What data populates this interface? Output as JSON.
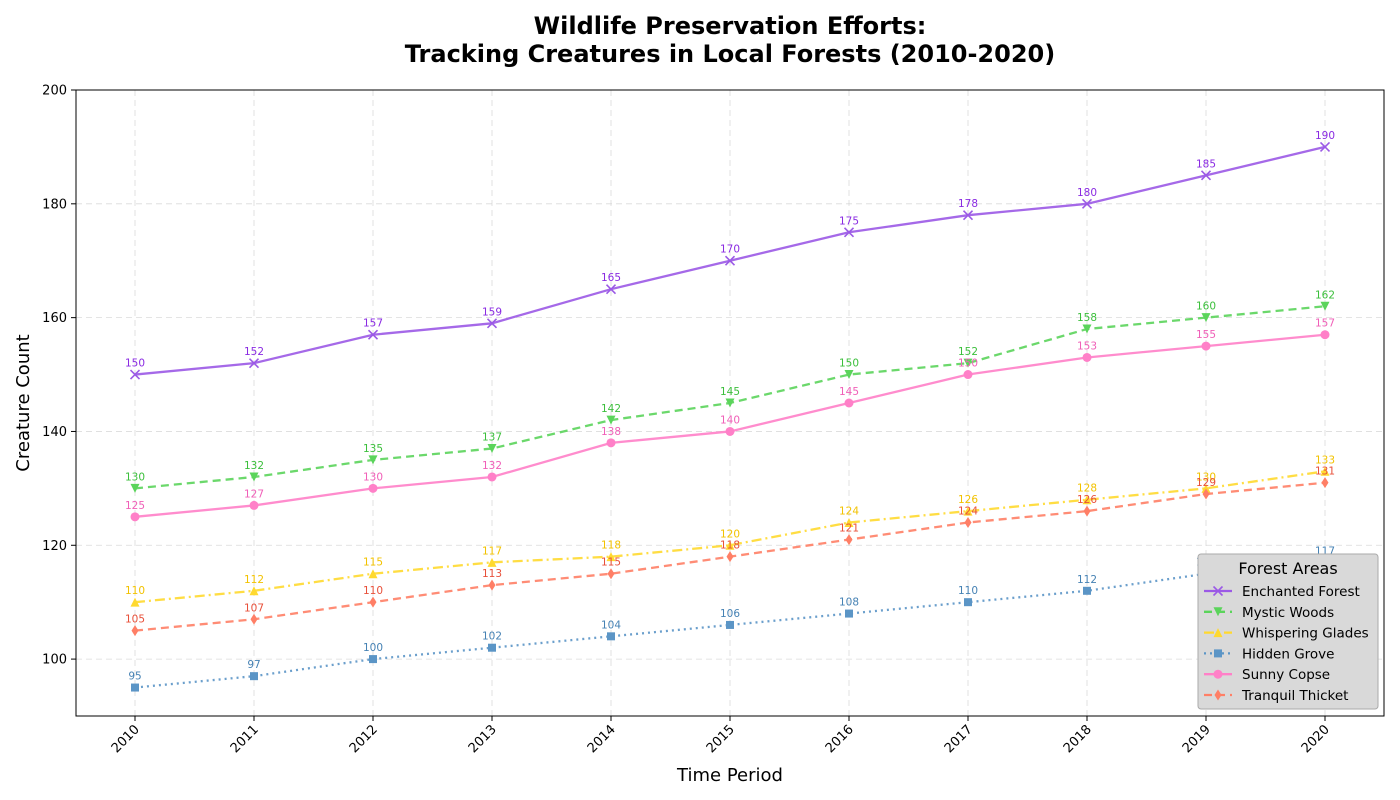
{
  "chart_data": {
    "type": "line",
    "title_line1": "Wildlife Preservation Efforts:",
    "title_line2": "Tracking Creatures in Local Forests (2010-2020)",
    "xlabel": "Time Period",
    "ylabel": "Creature Count",
    "x": [
      "2010",
      "2011",
      "2012",
      "2013",
      "2014",
      "2015",
      "2016",
      "2017",
      "2018",
      "2019",
      "2020"
    ],
    "ylim": [
      90,
      200
    ],
    "yticks": [
      100,
      120,
      140,
      160,
      180,
      200
    ],
    "grid": true,
    "legend": {
      "title": "Forest Areas",
      "placement": "right"
    },
    "series": [
      {
        "name": "Enchanted Forest",
        "color": "#9b59e6",
        "label_color": "#8a2be2",
        "dash": "solid",
        "marker": "x",
        "values": [
          150,
          152,
          157,
          159,
          165,
          170,
          175,
          178,
          180,
          185,
          190
        ]
      },
      {
        "name": "Mystic Woods",
        "color": "#5bd45b",
        "label_color": "#3cbf3c",
        "dash": "dashed",
        "marker": "triangle-down",
        "values": [
          130,
          132,
          135,
          137,
          142,
          145,
          150,
          152,
          158,
          160,
          162
        ]
      },
      {
        "name": "Whispering Glades",
        "color": "#ffd92f",
        "label_color": "#f2c200",
        "dash": "dashdot",
        "marker": "triangle-up",
        "values": [
          110,
          112,
          115,
          117,
          118,
          120,
          124,
          126,
          128,
          130,
          133
        ]
      },
      {
        "name": "Hidden Grove",
        "color": "#5b95c6",
        "label_color": "#4682b4",
        "dash": "dotted",
        "marker": "square",
        "values": [
          95,
          97,
          100,
          102,
          104,
          106,
          108,
          110,
          112,
          115,
          117
        ]
      },
      {
        "name": "Sunny Copse",
        "color": "#ff80c8",
        "label_color": "#f060b8",
        "dash": "solid",
        "marker": "circle",
        "values": [
          125,
          127,
          130,
          132,
          138,
          140,
          145,
          150,
          153,
          155,
          157
        ]
      },
      {
        "name": "Tranquil Thicket",
        "color": "#ff7f66",
        "label_color": "#e8503a",
        "dash": "dashed",
        "marker": "diamond",
        "values": [
          105,
          107,
          110,
          113,
          115,
          118,
          121,
          124,
          126,
          129,
          131
        ]
      }
    ]
  }
}
